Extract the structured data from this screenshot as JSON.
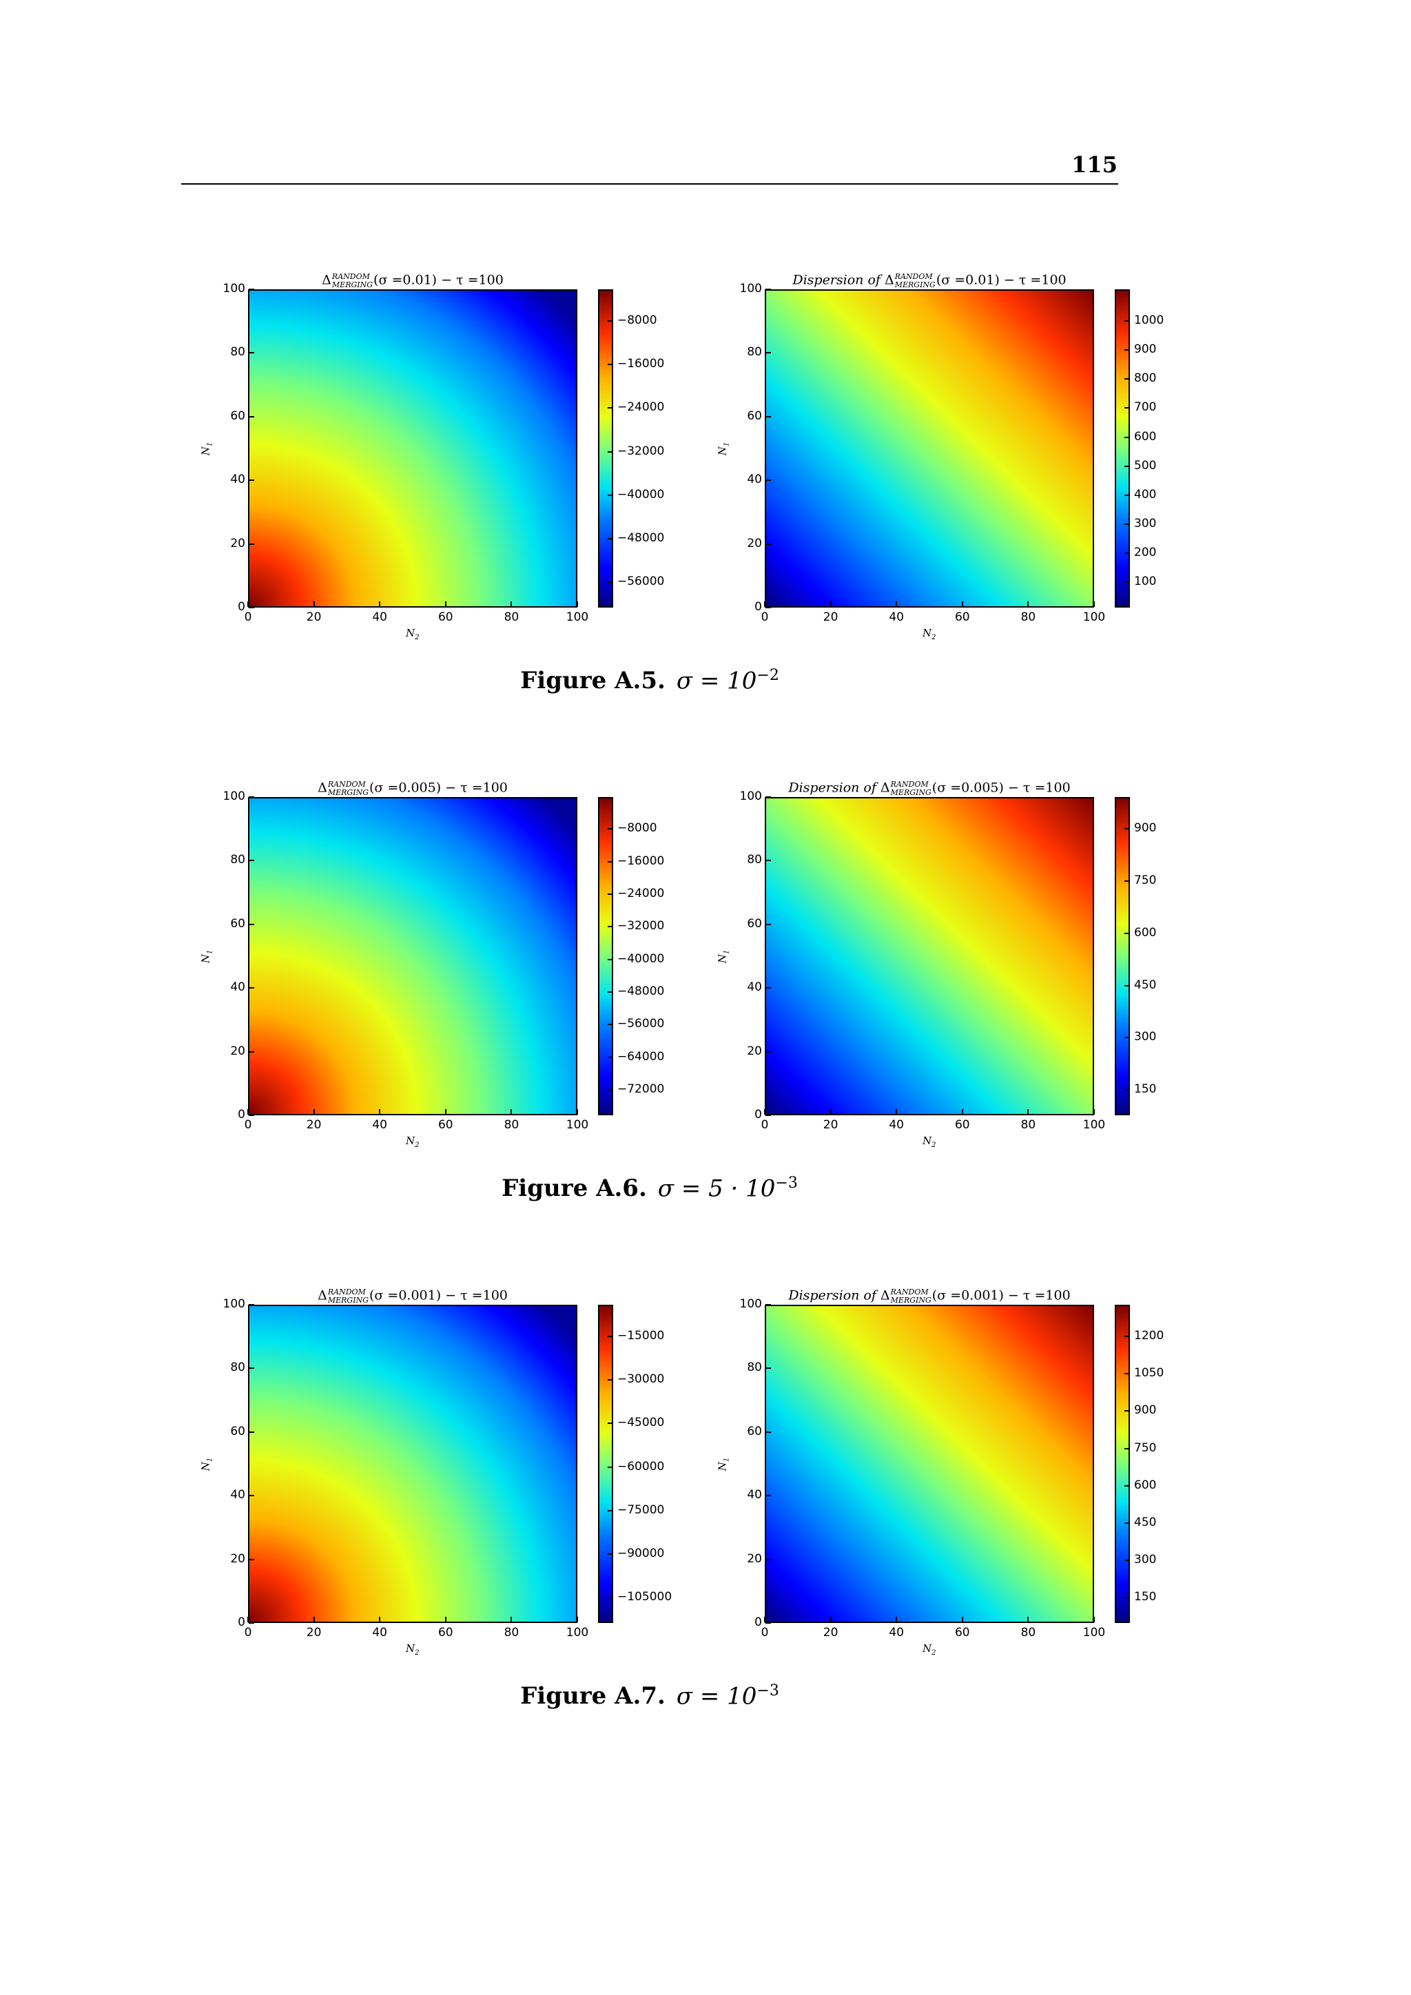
{
  "page": {
    "number": "115"
  },
  "figures": [
    {
      "caption_label": "Figure A.5.",
      "caption_expr": "σ = 10",
      "caption_exp": "−2",
      "panels": [
        {
          "title_prefix": "",
          "title_delta": "Δ",
          "title_sup": "RANDOM",
          "title_sub": "MERGING",
          "title_args": "(σ =0.01) − τ =100",
          "xlabel_main": "N",
          "xlabel_sub": "2",
          "ylabel_main": "N",
          "ylabel_sub": "1",
          "x_ticks": [
            "0",
            "20",
            "40",
            "60",
            "80",
            "100"
          ],
          "y_ticks": [
            "0",
            "20",
            "40",
            "60",
            "80",
            "100"
          ],
          "colorbar_ticks": [
            "−8000",
            "−16000",
            "−24000",
            "−32000",
            "−40000",
            "−48000",
            "−56000"
          ]
        },
        {
          "title_prefix": "Dispersion of ",
          "title_delta": "Δ",
          "title_sup": "RANDOM",
          "title_sub": "MERGING",
          "title_args": "(σ =0.01) − τ =100",
          "xlabel_main": "N",
          "xlabel_sub": "2",
          "ylabel_main": "N",
          "ylabel_sub": "1",
          "x_ticks": [
            "0",
            "20",
            "40",
            "60",
            "80",
            "100"
          ],
          "y_ticks": [
            "0",
            "20",
            "40",
            "60",
            "80",
            "100"
          ],
          "colorbar_ticks": [
            "1000",
            "900",
            "800",
            "700",
            "600",
            "500",
            "400",
            "300",
            "200",
            "100"
          ]
        }
      ]
    },
    {
      "caption_label": "Figure A.6.",
      "caption_expr": "σ = 5 · 10",
      "caption_exp": "−3",
      "panels": [
        {
          "title_prefix": "",
          "title_delta": "Δ",
          "title_sup": "RANDOM",
          "title_sub": "MERGING",
          "title_args": "(σ =0.005) − τ =100",
          "xlabel_main": "N",
          "xlabel_sub": "2",
          "ylabel_main": "N",
          "ylabel_sub": "1",
          "x_ticks": [
            "0",
            "20",
            "40",
            "60",
            "80",
            "100"
          ],
          "y_ticks": [
            "0",
            "20",
            "40",
            "60",
            "80",
            "100"
          ],
          "colorbar_ticks": [
            "−8000",
            "−16000",
            "−24000",
            "−32000",
            "−40000",
            "−48000",
            "−56000",
            "−64000",
            "−72000"
          ]
        },
        {
          "title_prefix": "Dispersion of ",
          "title_delta": "Δ",
          "title_sup": "RANDOM",
          "title_sub": "MERGING",
          "title_args": "(σ =0.005) − τ =100",
          "xlabel_main": "N",
          "xlabel_sub": "2",
          "ylabel_main": "N",
          "ylabel_sub": "1",
          "x_ticks": [
            "0",
            "20",
            "40",
            "60",
            "80",
            "100"
          ],
          "y_ticks": [
            "0",
            "20",
            "40",
            "60",
            "80",
            "100"
          ],
          "colorbar_ticks": [
            "900",
            "750",
            "600",
            "450",
            "300",
            "150"
          ]
        }
      ]
    },
    {
      "caption_label": "Figure A.7.",
      "caption_expr": "σ = 10",
      "caption_exp": "−3",
      "panels": [
        {
          "title_prefix": "",
          "title_delta": "Δ",
          "title_sup": "RANDOM",
          "title_sub": "MERGING",
          "title_args": "(σ =0.001) − τ =100",
          "xlabel_main": "N",
          "xlabel_sub": "2",
          "ylabel_main": "N",
          "ylabel_sub": "1",
          "x_ticks": [
            "0",
            "20",
            "40",
            "60",
            "80",
            "100"
          ],
          "y_ticks": [
            "0",
            "20",
            "40",
            "60",
            "80",
            "100"
          ],
          "colorbar_ticks": [
            "−15000",
            "−30000",
            "−45000",
            "−60000",
            "−75000",
            "−90000",
            "−105000"
          ]
        },
        {
          "title_prefix": "Dispersion of ",
          "title_delta": "Δ",
          "title_sup": "RANDOM",
          "title_sub": "MERGING",
          "title_args": "(σ =0.001) − τ =100",
          "xlabel_main": "N",
          "xlabel_sub": "2",
          "ylabel_main": "N",
          "ylabel_sub": "1",
          "x_ticks": [
            "0",
            "20",
            "40",
            "60",
            "80",
            "100"
          ],
          "y_ticks": [
            "0",
            "20",
            "40",
            "60",
            "80",
            "100"
          ],
          "colorbar_ticks": [
            "1200",
            "1050",
            "900",
            "750",
            "600",
            "450",
            "300",
            "150"
          ]
        }
      ]
    }
  ],
  "colormap": "jet"
}
